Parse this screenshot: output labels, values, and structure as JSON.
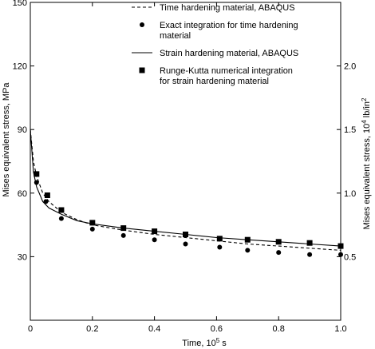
{
  "chart_data": {
    "type": "line",
    "xlabel": "Time, 10",
    "xlabel_sup": "5",
    "xlabel_unit": " s",
    "ylabel": "Mises equivalent stress, MPa",
    "y2label": "Mises equivalent stress, 10",
    "y2label_sup1": "4",
    "y2label_mid": " lb/in",
    "y2label_sup2": "2",
    "xlim": [
      0,
      1.0
    ],
    "ylim": [
      0,
      150
    ],
    "y2lim": [
      0,
      2.5
    ],
    "x_ticks": [
      "0",
      "0.2",
      "0.4",
      "0.6",
      "0.8",
      "1.0"
    ],
    "x_tick_values": [
      0,
      0.2,
      0.4,
      0.6,
      0.8,
      1.0
    ],
    "y_ticks": [
      "30",
      "60",
      "90",
      "120",
      "150"
    ],
    "y_tick_values": [
      30,
      60,
      90,
      120,
      150
    ],
    "y2_ticks": [
      "0.5",
      "1.0",
      "1.5",
      "2.0"
    ],
    "y2_tick_values": [
      0.5,
      1.0,
      1.5,
      2.0
    ],
    "grid": false,
    "legend_position": "top-right",
    "series": [
      {
        "name": "Time hardening material, ABAQUS",
        "style": "dashed-line",
        "x": [
          0,
          0.01,
          0.02,
          0.04,
          0.06,
          0.1,
          0.15,
          0.2,
          0.3,
          0.4,
          0.5,
          0.6,
          0.7,
          0.8,
          0.9,
          1.0
        ],
        "y": [
          90,
          75,
          68,
          60,
          56,
          51,
          47.5,
          45,
          42.5,
          40.5,
          39,
          37.5,
          36,
          35,
          34,
          33
        ]
      },
      {
        "name": "Exact integration for time hardening material",
        "style": "circle-marker",
        "x": [
          0.02,
          0.05,
          0.1,
          0.2,
          0.3,
          0.4,
          0.5,
          0.61,
          0.7,
          0.8,
          0.9,
          1.0
        ],
        "y": [
          65,
          56,
          48,
          43,
          40,
          38,
          36,
          34.5,
          33,
          32,
          31,
          31
        ]
      },
      {
        "name": "Strain hardening material, ABAQUS",
        "style": "solid-line",
        "x": [
          0,
          0.01,
          0.02,
          0.04,
          0.06,
          0.1,
          0.15,
          0.2,
          0.3,
          0.4,
          0.5,
          0.6,
          0.7,
          0.8,
          0.9,
          1.0
        ],
        "y": [
          90,
          70,
          63,
          56,
          53,
          50,
          47,
          45.5,
          43.5,
          42,
          40.5,
          39,
          38,
          37,
          36,
          35
        ]
      },
      {
        "name": "Runge-Kutta numerical integration for strain hardening material",
        "style": "square-marker",
        "x": [
          0.02,
          0.055,
          0.1,
          0.2,
          0.3,
          0.4,
          0.5,
          0.61,
          0.7,
          0.8,
          0.9,
          1.0
        ],
        "y": [
          69,
          59,
          52,
          46,
          43.5,
          42,
          40.5,
          38.5,
          38,
          37,
          36.5,
          35
        ]
      }
    ],
    "legend": [
      {
        "style": "dashed-line",
        "lines": [
          "Time hardening material, ABAQUS"
        ]
      },
      {
        "style": "circle-marker",
        "lines": [
          "Exact integration for time hardening",
          "material"
        ]
      },
      {
        "style": "solid-line",
        "lines": [
          "Strain hardening material, ABAQUS"
        ]
      },
      {
        "style": "square-marker",
        "lines": [
          "Runge-Kutta numerical integration",
          "for strain hardening material"
        ]
      }
    ]
  }
}
